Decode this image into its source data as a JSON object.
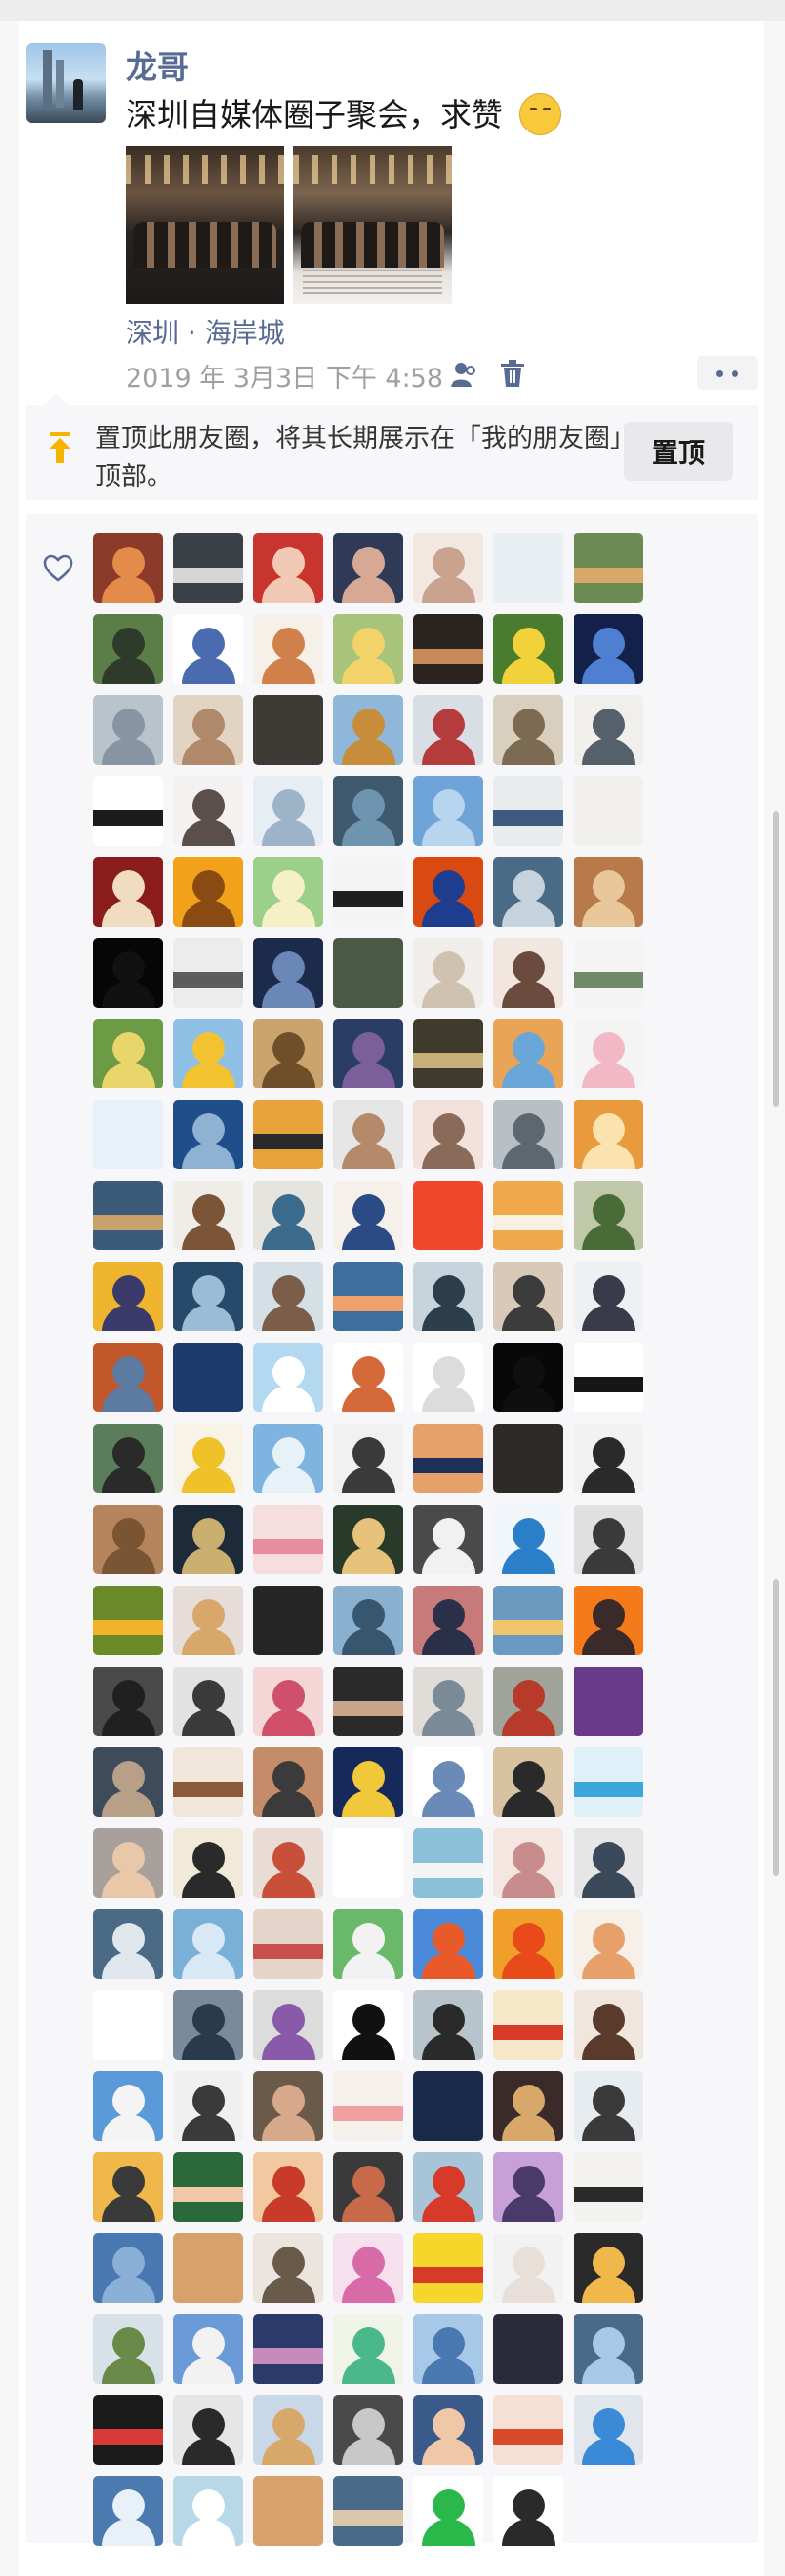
{
  "post": {
    "username": "龙哥",
    "text": "深圳自媒体圈子聚会，求赞",
    "emoji": "thinking-face-emoji",
    "location": "深圳 · 海岸城",
    "timestamp": "2019 年 3月3日  下午 4:58",
    "photos": [
      {
        "name": "party-photo-1"
      },
      {
        "name": "party-photo-2"
      }
    ]
  },
  "pin": {
    "text": "置顶此朋友圈，将其长期展示在「我的朋友圈」顶部。",
    "button_label": "置顶"
  },
  "colors": {
    "name_blue": "#576b95",
    "text_dark": "#191919",
    "meta_gray": "#a0a0a0",
    "panel_bg": "#f7f7fa",
    "pin_yellow": "#f5b400"
  },
  "likes": {
    "icon": "heart-outline-icon",
    "count_rows": 25,
    "avatars": [
      [
        "#8c3a2a",
        "#e48b4a"
      ],
      [
        "#3b3f46",
        "#d6d6d6"
      ],
      [
        "#c8342e",
        "#f2c9b4"
      ],
      [
        "#2e3a56",
        "#d7a994"
      ],
      [
        "#f3e7e2",
        "#c9a38d"
      ],
      [
        "#e9eef2",
        "#9aa4ad"
      ],
      [
        "#6c8b52",
        "#d8a86a"
      ],
      [
        "#5b7d48",
        "#2f3b2a"
      ],
      [
        "#ffffff",
        "#4a6bb0"
      ],
      [
        "#f6f1e8",
        "#d0804a"
      ],
      [
        "#a7c47a",
        "#f2d36a"
      ],
      [
        "#2b2320",
        "#c78b57"
      ],
      [
        "#4a7c2f",
        "#f2d23a"
      ],
      [
        "#12204a",
        "#4e7fd0"
      ],
      [
        "#b9c3cc",
        "#8795a3"
      ],
      [
        "#e2d4c2",
        "#b0886a"
      ],
      [
        "#3d3a36",
        "#d7b49a"
      ],
      [
        "#8fb7da",
        "#c88d3a"
      ],
      [
        "#d9dee4",
        "#b43c3c"
      ],
      [
        "#d8cfbf",
        "#7d6a53"
      ],
      [
        "#f1efec",
        "#55606b"
      ],
      [
        "#ffffff",
        "#1b1b1b"
      ],
      [
        "#f4f2f0",
        "#5a4f4a"
      ],
      [
        "#e6edf3",
        "#9db4c8"
      ],
      [
        "#3f5a6f",
        "#6f94b0"
      ],
      [
        "#6fa4d8",
        "#b7d5ef"
      ],
      [
        "#e8ecef",
        "#3d5a80"
      ],
      [
        "#f1f0ec",
        "#2e2e2e"
      ],
      [
        "#8a1c1c",
        "#f0dcc0"
      ],
      [
        "#f1a21a",
        "#8a4b12"
      ],
      [
        "#9ccf8a",
        "#f6f0c6"
      ],
      [
        "#f4f4f4",
        "#1f1f1f"
      ],
      [
        "#d84a12",
        "#1e3d8f"
      ],
      [
        "#4a6b86",
        "#c6d2dc"
      ],
      [
        "#b87a4a",
        "#e8c79a"
      ],
      [
        "#060606",
        "#111111"
      ],
      [
        "#ececec",
        "#5c5c5c"
      ],
      [
        "#1d2b4a",
        "#6b87b8"
      ],
      [
        "#4b5a45",
        "#bfae7a"
      ],
      [
        "#f0eeea",
        "#cfc2b0"
      ],
      [
        "#f2e6e0",
        "#6b4b3e"
      ],
      [
        "#f4f4f4",
        "#6f8b6a"
      ],
      [
        "#6d9a45",
        "#e8d66a"
      ],
      [
        "#8ec0e6",
        "#f2c230"
      ],
      [
        "#caa46c",
        "#6f4f2a"
      ],
      [
        "#2a3d63",
        "#7a5f9a"
      ],
      [
        "#3f3b2c",
        "#c8b07a"
      ],
      [
        "#eaa455",
        "#6aa7d8"
      ],
      [
        "#f4f4f4",
        "#f2b8c6"
      ],
      [
        "#e8f0f8",
        "#2a5fa8"
      ],
      [
        "#1e4f8a",
        "#8fb2d3"
      ],
      [
        "#e8a23a",
        "#2a2a2a"
      ],
      [
        "#e6e6e6",
        "#b58a6a"
      ],
      [
        "#f3e2dc",
        "#8a6b5a"
      ],
      [
        "#b8c0c6",
        "#5d6770"
      ],
      [
        "#e89a3c",
        "#fbe3b0"
      ],
      [
        "#3c5a7a",
        "#c8a26a"
      ],
      [
        "#f0ede8",
        "#7c5438"
      ],
      [
        "#e6e4de",
        "#3a6b8c"
      ],
      [
        "#f5f1ea",
        "#2b4b85"
      ],
      [
        "#f0462a",
        "#ffd2a0"
      ],
      [
        "#f0a94a",
        "#f8f0e0"
      ],
      [
        "#bfc9a9",
        "#496b38"
      ],
      [
        "#f0b52e",
        "#3a3b6a"
      ],
      [
        "#284a6a",
        "#9cbcd6"
      ],
      [
        "#d5e0e6",
        "#7a5e4a"
      ],
      [
        "#3c6f9c",
        "#f0a06a"
      ],
      [
        "#c8d4dc",
        "#2c3e4c"
      ],
      [
        "#d8c9b8",
        "#3c3c3c"
      ],
      [
        "#eef0f2",
        "#3a3a4a"
      ],
      [
        "#c2572a",
        "#5d7ba0"
      ],
      [
        "#1e3a6c",
        "#f4e4a0"
      ],
      [
        "#b4d8f0",
        "#ffffff"
      ],
      [
        "#ffffff",
        "#d46a3a"
      ],
      [
        "#ffffff",
        "#dcdcdc"
      ],
      [
        "#080808",
        "#0f0f0f"
      ],
      [
        "#ffffff",
        "#151515"
      ],
      [
        "#5a7d5a",
        "#2a2a2a"
      ],
      [
        "#f7f3e7",
        "#f0c22a"
      ],
      [
        "#7fb4e0",
        "#e6f1f8"
      ],
      [
        "#f1f1f1",
        "#3a3a3a"
      ],
      [
        "#e6a06a",
        "#1e3158"
      ],
      [
        "#2e2a28",
        "#d9b9a0"
      ],
      [
        "#f2f2f2",
        "#2a2a2a"
      ],
      [
        "#b5845a",
        "#7a5534"
      ],
      [
        "#1d2a3a",
        "#c9b070"
      ],
      [
        "#f7dede",
        "#e88ca0"
      ],
      [
        "#2a3a2a",
        "#e6c27a"
      ],
      [
        "#4a4a4a",
        "#f1f1f1"
      ],
      [
        "#f0f6fa",
        "#2a7fc8"
      ],
      [
        "#e0e0e0",
        "#3a3a3a"
      ],
      [
        "#6a8a2a",
        "#f2b22a"
      ],
      [
        "#e6dcd8",
        "#d8a86a"
      ],
      [
        "#262626",
        "#9a8a7a"
      ],
      [
        "#8ab0d0",
        "#38566e"
      ],
      [
        "#c87a7a",
        "#2a2f4a"
      ],
      [
        "#6a9ac0",
        "#f0c46a"
      ],
      [
        "#f47a1a",
        "#3a2a2a"
      ],
      [
        "#4a4a4a",
        "#202020"
      ],
      [
        "#e2e2e2",
        "#3a3a3a"
      ],
      [
        "#f4d6d6",
        "#d0506a"
      ],
      [
        "#2a2a2a",
        "#c8a58a"
      ],
      [
        "#e0ddd8",
        "#7a8a96"
      ],
      [
        "#a0a49a",
        "#b83a2a"
      ],
      [
        "#6a3a8a",
        "#f0a0d0"
      ],
      [
        "#3e4b5a",
        "#b8a088"
      ],
      [
        "#f1e6da",
        "#8a5a3a"
      ],
      [
        "#c58c6a",
        "#3b3b3b"
      ],
      [
        "#152a5a",
        "#f0c83a"
      ],
      [
        "#ffffff",
        "#6a8ab8"
      ],
      [
        "#d8c2a2",
        "#2a2a2a"
      ],
      [
        "#e0f0f8",
        "#3aa8d8"
      ],
      [
        "#a8a09a",
        "#e8c8a8"
      ],
      [
        "#f2ead8",
        "#2a2a2a"
      ],
      [
        "#e8dcd4",
        "#c8503a"
      ],
      [
        "#ffffff",
        "#d86a3a"
      ],
      [
        "#8ac0d8",
        "#f4f4f4"
      ],
      [
        "#f4e6e0",
        "#c88c8c"
      ],
      [
        "#e6e6e6",
        "#3a4a5a"
      ],
      [
        "#4a6a86",
        "#dfe6ec"
      ],
      [
        "#7ab0d8",
        "#d8e8f4"
      ],
      [
        "#e4d4ca",
        "#c8504a"
      ],
      [
        "#6ab86a",
        "#f2f2f2"
      ],
      [
        "#4a8ad8",
        "#e85a2a"
      ],
      [
        "#f0a02a",
        "#e84a1a"
      ],
      [
        "#f6f0e8",
        "#e8a06a"
      ],
      [
        "#ffffff",
        "#2a2a2a"
      ],
      [
        "#7a8a9a",
        "#2a3a4a"
      ],
      [
        "#dcdcdc",
        "#8a5aaa"
      ],
      [
        "#ffffff",
        "#111111"
      ],
      [
        "#b8c4cc",
        "#2a2a2a"
      ],
      [
        "#f6e8c8",
        "#d83a2a"
      ],
      [
        "#f0e6de",
        "#5a3a2a"
      ],
      [
        "#5a9ad8",
        "#f4f4f4"
      ],
      [
        "#f0f0f0",
        "#3a3a3a"
      ],
      [
        "#6a5a4a",
        "#d8a88a"
      ],
      [
        "#f6f0ec",
        "#f0a0a0"
      ],
      [
        "#1a2a4a",
        "#c88a5a"
      ],
      [
        "#3a2a2a",
        "#d8a86a"
      ],
      [
        "#e6ecef",
        "#3a3a3a"
      ],
      [
        "#f0b84a",
        "#3a3a3a"
      ],
      [
        "#2a6a3a",
        "#f0c8a8"
      ],
      [
        "#f2c8a0",
        "#c83a2a"
      ],
      [
        "#3a3a3a",
        "#c86a4a"
      ],
      [
        "#a8c4d8",
        "#d83a2a"
      ],
      [
        "#c8a0d8",
        "#4a3a6a"
      ],
      [
        "#f4f2ee",
        "#2a2a2a"
      ],
      [
        "#4a78b0",
        "#8ab0d8"
      ],
      [
        "#d8a06a",
        "#3a2a1a"
      ],
      [
        "#ece4de",
        "#6a5a4a"
      ],
      [
        "#f6e0ee",
        "#d86aa8"
      ],
      [
        "#f6d62a",
        "#d83a2a"
      ],
      [
        "#f2f2f2",
        "#e8e0d8"
      ],
      [
        "#2a2a2a",
        "#f0b84a"
      ],
      [
        "#d8e0e8",
        "#6a8a4a"
      ],
      [
        "#6a9ad8",
        "#f2f2f2"
      ],
      [
        "#2a3a6a",
        "#c88ab8"
      ],
      [
        "#f0f4e8",
        "#4ab88a"
      ],
      [
        "#a8c8e8",
        "#4a78b0"
      ],
      [
        "#2a2a3a",
        "#e0e0e0"
      ],
      [
        "#4a6a8a",
        "#a8c8e8"
      ],
      [
        "#1a1a1a",
        "#d83a3a"
      ],
      [
        "#e6e6e6",
        "#2a2a2a"
      ],
      [
        "#c8d8e8",
        "#d8a86a"
      ],
      [
        "#4a4a4a",
        "#c8c8c8"
      ],
      [
        "#3a5a8a",
        "#f0c8a8"
      ],
      [
        "#f6e0d6",
        "#d84a2a"
      ],
      [
        "#e0e6ec",
        "#3a8ad8"
      ],
      [
        "#4a7ab0",
        "#e8f0f8"
      ],
      [
        "#b8d8e8",
        "#ffffff"
      ],
      [
        "#d8a06a",
        "#4a2a1a"
      ],
      [
        "#4a6a8a",
        "#d8c8a8"
      ],
      [
        "#ffffff",
        "#2ab84a"
      ],
      [
        "#ffffff",
        "#2a2a2a"
      ]
    ]
  }
}
